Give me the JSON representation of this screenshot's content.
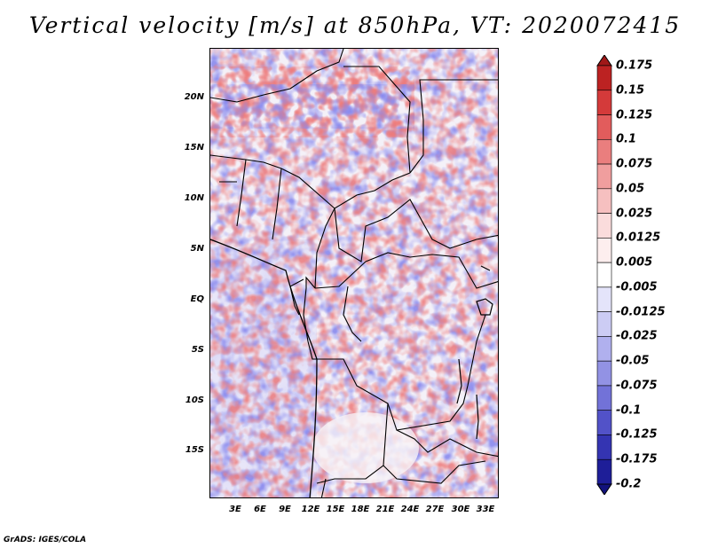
{
  "title": "Vertical velocity [m/s] at 850hPa, VT: 2020072415",
  "footer": "GrADS: IGES/COLA",
  "y_axis_labels": [
    "20N",
    "15N",
    "10N",
    "5N",
    "EQ",
    "5S",
    "10S",
    "15S"
  ],
  "x_axis_labels": [
    "3E",
    "6E",
    "9E",
    "12E",
    "15E",
    "18E",
    "21E",
    "24E",
    "27E",
    "30E",
    "33E"
  ],
  "colorbar": {
    "labels": [
      "0.175",
      "0.15",
      "0.125",
      "0.1",
      "0.075",
      "0.05",
      "0.025",
      "0.0125",
      "0.005",
      "-0.005",
      "-0.0125",
      "-0.025",
      "-0.05",
      "-0.075",
      "-0.1",
      "-0.125",
      "-0.175",
      "-0.2"
    ],
    "colors": [
      "#a01818",
      "#bc2222",
      "#d43a3a",
      "#e25c5c",
      "#ea7e7e",
      "#f09e9e",
      "#f6c0c0",
      "#fadcdc",
      "#fdeeee",
      "#ffffff",
      "#e4e4fa",
      "#ccccf4",
      "#b0b0ee",
      "#9292e4",
      "#7272d8",
      "#5252c8",
      "#3434b2",
      "#1e1e98",
      "#12127c"
    ]
  },
  "map": {
    "lon_range": [
      0,
      35
    ],
    "lat_range": [
      -20,
      24
    ],
    "field": "vertical velocity 850hPa"
  }
}
